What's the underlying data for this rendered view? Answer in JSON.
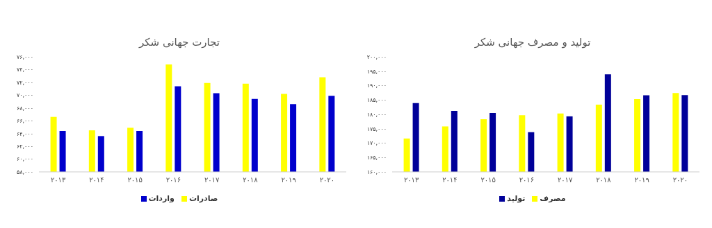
{
  "chart_data": [
    {
      "type": "bar",
      "title": "تجارت جهانی شکر",
      "categories": [
        "۲۰۱۳",
        "۲۰۱۴",
        "۲۰۱۵",
        "۲۰۱۶",
        "۲۰۱۷",
        "۲۰۱۸",
        "۲۰۱۹",
        "۲۰۲۰"
      ],
      "series": [
        {
          "name": "صادرات",
          "color": "#ffff00",
          "values": [
            66600,
            64500,
            64900,
            74800,
            71900,
            71800,
            70200,
            72800
          ]
        },
        {
          "name": "واردات",
          "color": "#0000cc",
          "values": [
            64400,
            63600,
            64400,
            71400,
            70300,
            69400,
            68600,
            69900
          ]
        }
      ],
      "ylim": [
        58000,
        76000
      ],
      "yticks": [
        {
          "value": 58000,
          "label": "۵۸,۰۰۰"
        },
        {
          "value": 60000,
          "label": "۶۰,۰۰۰"
        },
        {
          "value": 62000,
          "label": "۶۲,۰۰۰"
        },
        {
          "value": 64000,
          "label": "۶۴,۰۰۰"
        },
        {
          "value": 66000,
          "label": "۶۶,۰۰۰"
        },
        {
          "value": 68000,
          "label": "۶۸,۰۰۰"
        },
        {
          "value": 70000,
          "label": "۷۰,۰۰۰"
        },
        {
          "value": 72000,
          "label": "۷۲,۰۰۰"
        },
        {
          "value": 74000,
          "label": "۷۴,۰۰۰"
        },
        {
          "value": 76000,
          "label": "۷۶,۰۰۰"
        }
      ],
      "grid": false,
      "legend": "bottom"
    },
    {
      "type": "bar",
      "title": "تولید و مصرف جهانی شکر",
      "categories": [
        "۲۰۱۳",
        "۲۰۱۴",
        "۲۰۱۵",
        "۲۰۱۶",
        "۲۰۱۷",
        "۲۰۱۸",
        "۲۰۱۹",
        "۲۰۲۰"
      ],
      "series": [
        {
          "name": "مصرف",
          "color": "#ffff00",
          "values": [
            171600,
            175800,
            178300,
            179700,
            180300,
            183400,
            185300,
            187400
          ]
        },
        {
          "name": "تولید",
          "color": "#000099",
          "values": [
            183900,
            181200,
            180500,
            173800,
            179300,
            193900,
            186600,
            186700
          ]
        }
      ],
      "ylim": [
        160000,
        200000
      ],
      "yticks": [
        {
          "value": 160000,
          "label": "۱۶۰,۰۰۰"
        },
        {
          "value": 165000,
          "label": "۱۶۵,۰۰۰"
        },
        {
          "value": 170000,
          "label": "۱۷۰,۰۰۰"
        },
        {
          "value": 175000,
          "label": "۱۷۵,۰۰۰"
        },
        {
          "value": 180000,
          "label": "۱۸۰,۰۰۰"
        },
        {
          "value": 185000,
          "label": "۱۸۵,۰۰۰"
        },
        {
          "value": 190000,
          "label": "۱۹۰,۰۰۰"
        },
        {
          "value": 195000,
          "label": "۱۹۵,۰۰۰"
        },
        {
          "value": 200000,
          "label": "۲۰۰,۰۰۰"
        }
      ],
      "grid": false,
      "legend": "bottom"
    }
  ]
}
